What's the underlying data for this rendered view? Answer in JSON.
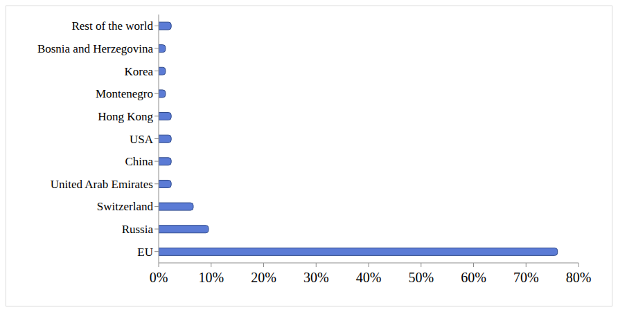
{
  "chart_data": {
    "type": "bar",
    "orientation": "horizontal",
    "categories": [
      "EU",
      "Russia",
      "Switzerland",
      "United Arab Emirates",
      "China",
      "USA",
      "Hong Kong",
      "Montenegro",
      "Korea",
      "Bosnia and Herzegovina",
      "Rest of the world"
    ],
    "values": [
      76,
      9.5,
      6.6,
      2.4,
      2.4,
      2.4,
      2.4,
      1.3,
      1.3,
      1.3,
      2.4
    ],
    "color": "#5b7bd5",
    "xlim": [
      0,
      80
    ],
    "xticks": [
      {
        "value": 0,
        "label": "0%"
      },
      {
        "value": 10,
        "label": "10%"
      },
      {
        "value": 20,
        "label": "20%"
      },
      {
        "value": 30,
        "label": "30%"
      },
      {
        "value": 40,
        "label": "40%"
      },
      {
        "value": 50,
        "label": "50%"
      },
      {
        "value": 60,
        "label": "60%"
      },
      {
        "value": 70,
        "label": "70%"
      },
      {
        "value": 80,
        "label": "80%"
      }
    ],
    "grid": false
  }
}
